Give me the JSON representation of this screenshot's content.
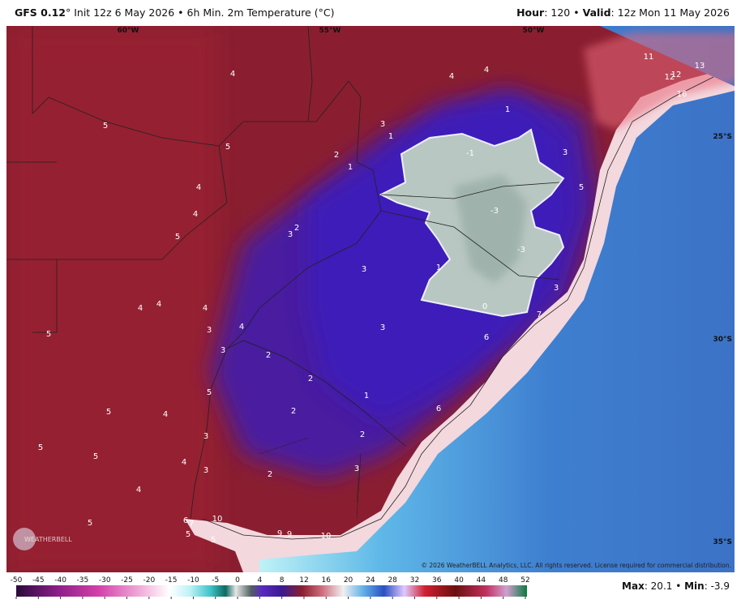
{
  "header": {
    "model": "GFS 0.12",
    "run": "° Init 12z 6 May 2026 • 6h Min. 2m Temperature (°C)",
    "hour_label": "Hour",
    "hour_value": ": 120 • ",
    "valid_label": "Valid",
    "valid_value": ": 12z Mon 11 May 2026"
  },
  "longitudes": [
    "60°W",
    "55°W",
    "50°W"
  ],
  "latitudes": [
    "25°S",
    "30°S",
    "35°S"
  ],
  "map_labels": [
    4,
    4,
    4,
    11,
    12,
    12,
    13,
    16,
    5,
    5,
    3,
    1,
    1,
    2,
    1,
    3,
    -1,
    4,
    4,
    5,
    -3,
    5,
    2,
    3,
    3,
    1,
    -3,
    3,
    4,
    4,
    4,
    0,
    7,
    5,
    3,
    4,
    3,
    6,
    3,
    2,
    2,
    1,
    5,
    5,
    4,
    2,
    6,
    3,
    2,
    5,
    5,
    4,
    3,
    2,
    3,
    4,
    5,
    6,
    7,
    10,
    5,
    5,
    9,
    9,
    10
  ],
  "logo": "WEATHERBELL",
  "copyright": "© 2026 WeatherBELL Analytics, LLC. All rights reserved. License required for commercial distribution.",
  "colorbar_ticks": [
    -50,
    -45,
    -40,
    -35,
    -30,
    -25,
    -20,
    -15,
    -10,
    -5,
    0,
    4,
    8,
    12,
    16,
    20,
    24,
    28,
    32,
    36,
    40,
    44,
    48,
    52
  ],
  "footer": {
    "max_label": "Max",
    "max_value": ": 20.1 • ",
    "min_label": "Min",
    "min_value": ": -3.9"
  }
}
